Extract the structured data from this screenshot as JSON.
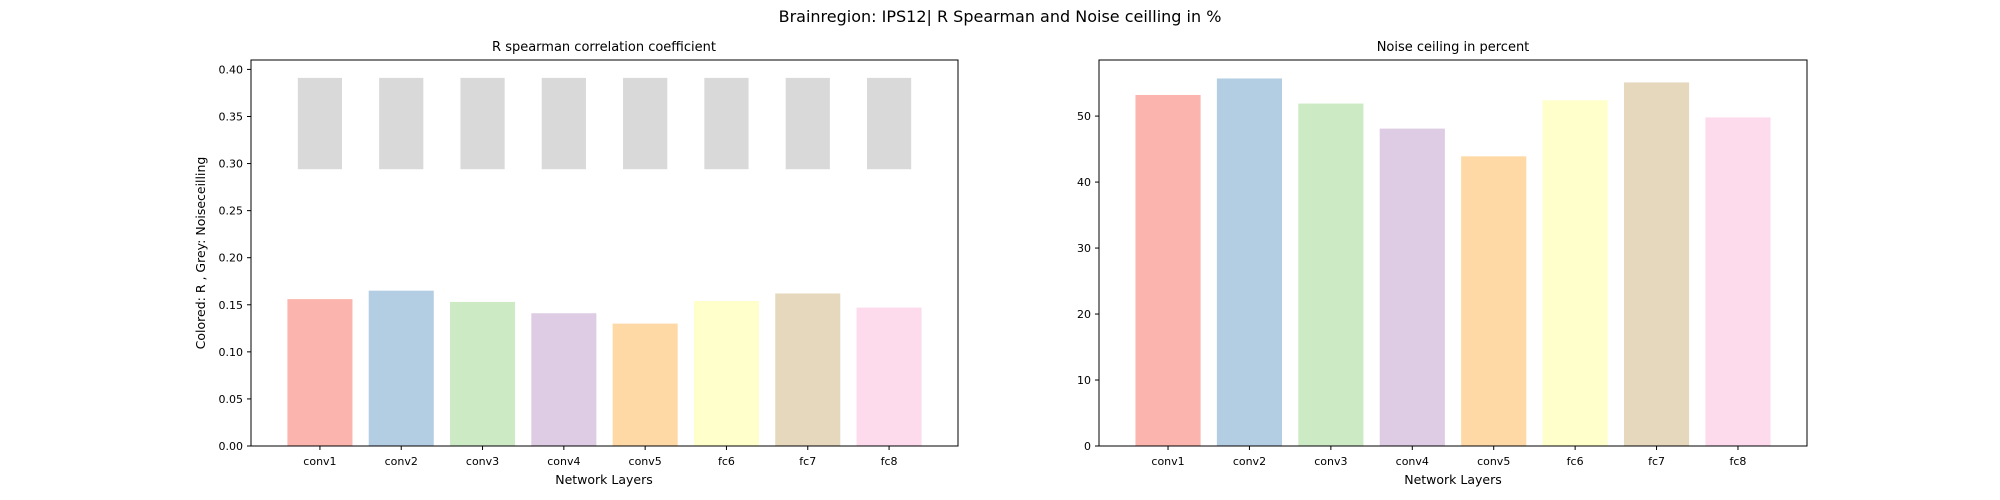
{
  "figure": {
    "title": "Brainregion: IPS12| R Spearman and Noise ceilling in %"
  },
  "chart_data": [
    {
      "type": "bar",
      "title": "R spearman correlation coefficient",
      "xlabel": "Network Layers",
      "ylabel": "Colored: R , Grey: Noiseceilling",
      "categories": [
        "conv1",
        "conv2",
        "conv3",
        "conv4",
        "conv5",
        "fc6",
        "fc7",
        "fc8"
      ],
      "ylim": [
        0,
        0.41
      ],
      "yticks": [
        "0.00",
        "0.05",
        "0.10",
        "0.15",
        "0.20",
        "0.25",
        "0.30",
        "0.35",
        "0.40"
      ],
      "ytick_values": [
        0,
        0.05,
        0.1,
        0.15,
        0.2,
        0.25,
        0.3,
        0.35,
        0.4
      ],
      "series": [
        {
          "values": [
            0.156,
            0.165,
            0.153,
            0.141,
            0.13,
            0.154,
            0.162,
            0.147
          ]
        },
        {
          "type": "floating-bar",
          "range": [
            0.294,
            0.391
          ],
          "color": "#d9d9d9"
        }
      ],
      "colors": [
        "#fbb4ae",
        "#b3cde3",
        "#ccebc5",
        "#decbe4",
        "#fed9a6",
        "#ffffcc",
        "#e5d8bd",
        "#fddaec"
      ],
      "grid": false,
      "legend": "none"
    },
    {
      "type": "bar",
      "title": "Noise ceiling in percent",
      "xlabel": "Network Layers",
      "ylabel": "",
      "categories": [
        "conv1",
        "conv2",
        "conv3",
        "conv4",
        "conv5",
        "fc6",
        "fc7",
        "fc8"
      ],
      "ylim": [
        0,
        58.5
      ],
      "yticks": [
        "0",
        "10",
        "20",
        "30",
        "40",
        "50"
      ],
      "ytick_values": [
        0,
        10,
        20,
        30,
        40,
        50
      ],
      "values": [
        53.2,
        55.7,
        51.9,
        48.1,
        43.9,
        52.4,
        55.1,
        49.8
      ],
      "colors": [
        "#fbb4ae",
        "#b3cde3",
        "#ccebc5",
        "#decbe4",
        "#fed9a6",
        "#ffffcc",
        "#e5d8bd",
        "#fddaec"
      ],
      "grid": false,
      "legend": "none"
    }
  ]
}
